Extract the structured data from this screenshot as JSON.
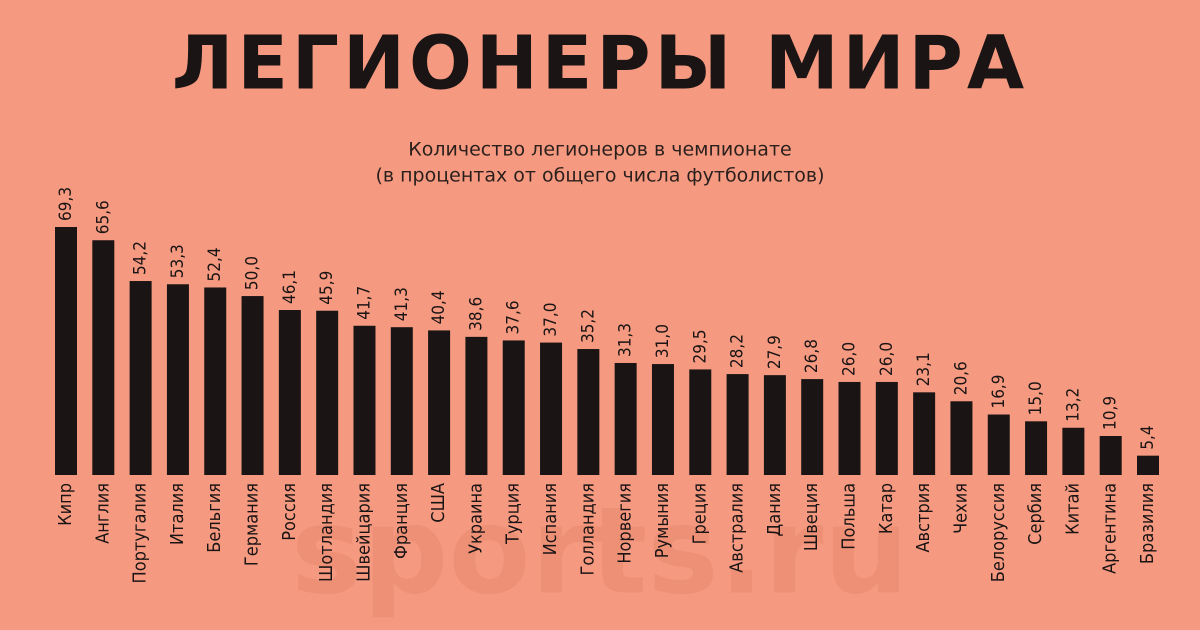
{
  "chart_data": {
    "type": "bar",
    "title": "ЛЕГИОНЕРЫ МИРА",
    "subtitle": [
      "Количество легионеров в чемпионате",
      "(в процентах от общего числа футболистов)"
    ],
    "watermark": "sports.ru",
    "categories": [
      "Кипр",
      "Англия",
      "Португалия",
      "Италия",
      "Бельгия",
      "Германия",
      "Россия",
      "Шотландия",
      "Швейцария",
      "Франция",
      "США",
      "Украина",
      "Турция",
      "Испания",
      "Голландия",
      "Норвегия",
      "Румыния",
      "Греция",
      "Австралия",
      "Дания",
      "Швеция",
      "Польша",
      "Катар",
      "Австрия",
      "Чехия",
      "Белоруссия",
      "Сербия",
      "Китай",
      "Аргентина",
      "Бразилия"
    ],
    "values": [
      69.3,
      65.6,
      54.2,
      53.3,
      52.4,
      50.0,
      46.1,
      45.9,
      41.7,
      41.3,
      40.4,
      38.6,
      37.6,
      37.0,
      35.2,
      31.3,
      31.0,
      29.5,
      28.2,
      27.9,
      26.8,
      26.0,
      26.0,
      23.1,
      20.6,
      16.9,
      15.0,
      13.2,
      10.9,
      5.4
    ],
    "value_labels": [
      "69,3",
      "65,6",
      "54,2",
      "53,3",
      "52,4",
      "50,0",
      "46,1",
      "45,9",
      "41,7",
      "41,3",
      "40,4",
      "38,6",
      "37,6",
      "37,0",
      "35,2",
      "31,3",
      "31,0",
      "29,5",
      "28,2",
      "27,9",
      "26,8",
      "26,0",
      "26,0",
      "23,1",
      "20,6",
      "16,9",
      "15,0",
      "13,2",
      "10,9",
      "5,4"
    ],
    "color": "#1a1414"
  }
}
